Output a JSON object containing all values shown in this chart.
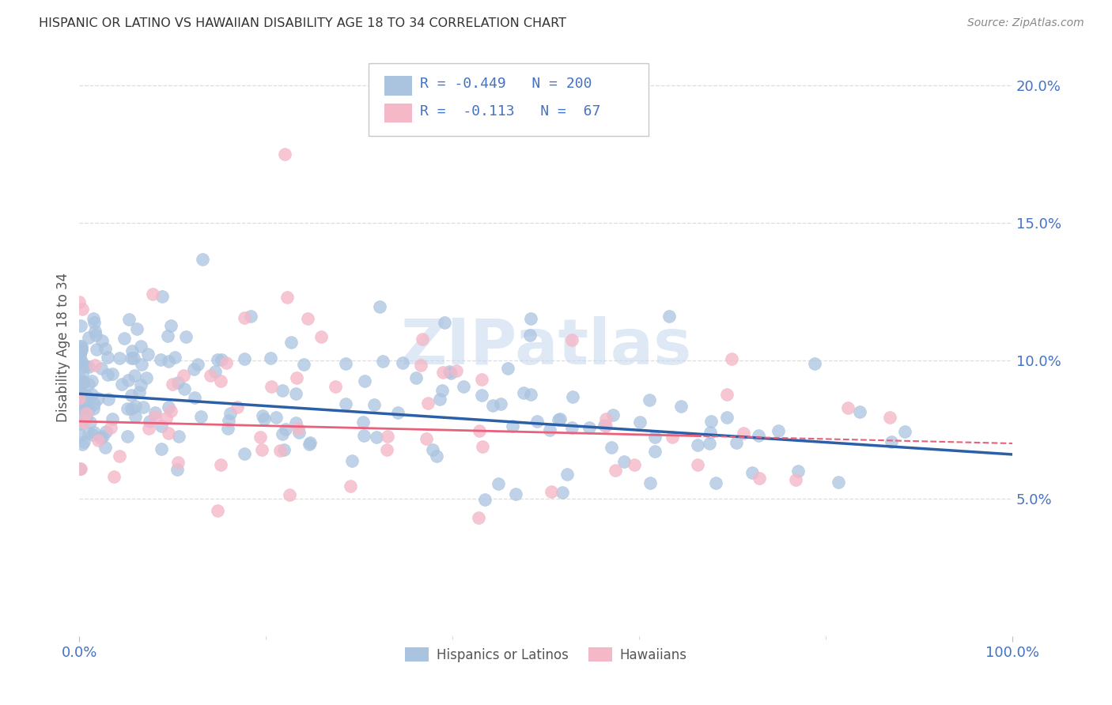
{
  "title": "HISPANIC OR LATINO VS HAWAIIAN DISABILITY AGE 18 TO 34 CORRELATION CHART",
  "source": "Source: ZipAtlas.com",
  "ylabel": "Disability Age 18 to 34",
  "legend_labels": [
    "Hispanics or Latinos",
    "Hawaiians"
  ],
  "r_blue": -0.449,
  "n_blue": 200,
  "r_pink": -0.113,
  "n_pink": 67,
  "blue_color": "#aac4e0",
  "pink_color": "#f4b8c8",
  "blue_line_color": "#2b5fa8",
  "pink_line_color": "#e8607a",
  "xlim": [
    0,
    1
  ],
  "ylim": [
    0,
    0.21
  ],
  "y_ticks": [
    0.05,
    0.1,
    0.15,
    0.2
  ],
  "y_tick_labels": [
    "5.0%",
    "10.0%",
    "15.0%",
    "20.0%"
  ],
  "watermark": "ZIPatlas",
  "background_color": "#ffffff",
  "title_color": "#333333",
  "tick_color": "#4472c4",
  "source_color": "#888888",
  "ylabel_color": "#555555",
  "grid_color": "#dddddd",
  "seed_blue": 15,
  "seed_pink": 23,
  "blue_intercept": 0.092,
  "blue_slope": -0.03,
  "blue_noise": 0.013,
  "pink_intercept": 0.08,
  "pink_slope": -0.012,
  "pink_noise": 0.022
}
